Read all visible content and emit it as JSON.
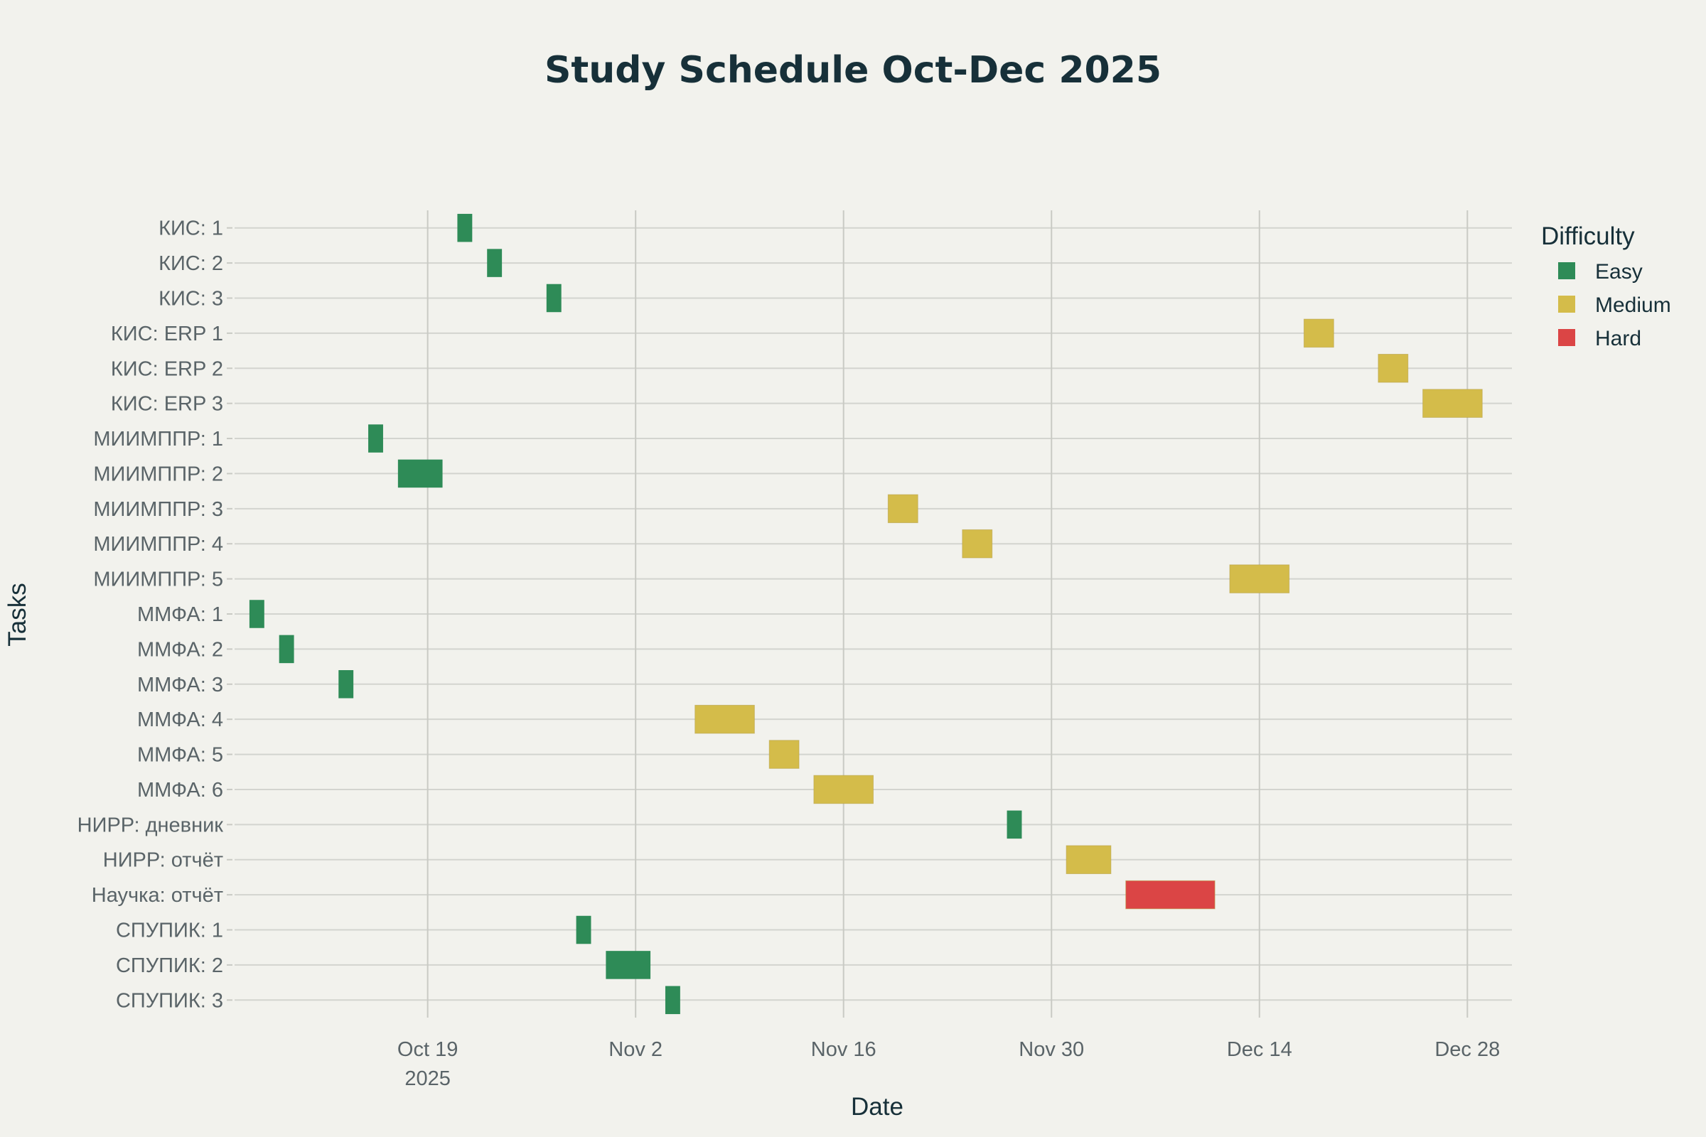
{
  "chart_data": {
    "type": "gantt",
    "title": "Study Schedule Oct-Dec 2025",
    "xlabel": "Date",
    "ylabel": "Tasks",
    "x_type": "date",
    "xlim": [
      "2025-10-06",
      "2025-12-31"
    ],
    "x_ticks": [
      {
        "date": "2025-10-19",
        "label": "Oct 19",
        "sublabel": "2025"
      },
      {
        "date": "2025-11-02",
        "label": "Nov 2",
        "sublabel": ""
      },
      {
        "date": "2025-11-16",
        "label": "Nov 16",
        "sublabel": ""
      },
      {
        "date": "2025-11-30",
        "label": "Nov 30",
        "sublabel": ""
      },
      {
        "date": "2025-12-14",
        "label": "Dec 14",
        "sublabel": ""
      },
      {
        "date": "2025-12-28",
        "label": "Dec 28",
        "sublabel": ""
      }
    ],
    "grid": true,
    "legend": {
      "title": "Difficulty",
      "position": "top-right",
      "items": [
        {
          "name": "Easy",
          "color": "#2e8b57"
        },
        {
          "name": "Medium",
          "color": "#d4bc4a"
        },
        {
          "name": "Hard",
          "color": "#db4545"
        }
      ]
    },
    "tasks": [
      {
        "task": "КИС: 1",
        "start": "2025-10-21",
        "end": "2025-10-22",
        "difficulty": "Easy"
      },
      {
        "task": "КИС: 2",
        "start": "2025-10-23",
        "end": "2025-10-24",
        "difficulty": "Easy"
      },
      {
        "task": "КИС: 3",
        "start": "2025-10-27",
        "end": "2025-10-28",
        "difficulty": "Easy"
      },
      {
        "task": "КИС: ERP 1",
        "start": "2025-12-17",
        "end": "2025-12-19",
        "difficulty": "Medium"
      },
      {
        "task": "КИС: ERP 2",
        "start": "2025-12-22",
        "end": "2025-12-24",
        "difficulty": "Medium"
      },
      {
        "task": "КИС: ERP 3",
        "start": "2025-12-25",
        "end": "2025-12-29",
        "difficulty": "Medium"
      },
      {
        "task": "МИИМППР: 1",
        "start": "2025-10-15",
        "end": "2025-10-16",
        "difficulty": "Easy"
      },
      {
        "task": "МИИМППР: 2",
        "start": "2025-10-17",
        "end": "2025-10-20",
        "difficulty": "Easy"
      },
      {
        "task": "МИИМППР: 3",
        "start": "2025-11-19",
        "end": "2025-11-21",
        "difficulty": "Medium"
      },
      {
        "task": "МИИМППР: 4",
        "start": "2025-11-24",
        "end": "2025-11-26",
        "difficulty": "Medium"
      },
      {
        "task": "МИИМППР: 5",
        "start": "2025-12-12",
        "end": "2025-12-16",
        "difficulty": "Medium"
      },
      {
        "task": "ММФА: 1",
        "start": "2025-10-07",
        "end": "2025-10-08",
        "difficulty": "Easy"
      },
      {
        "task": "ММФА: 2",
        "start": "2025-10-09",
        "end": "2025-10-10",
        "difficulty": "Easy"
      },
      {
        "task": "ММФА: 3",
        "start": "2025-10-13",
        "end": "2025-10-14",
        "difficulty": "Easy"
      },
      {
        "task": "ММФА: 4",
        "start": "2025-11-06",
        "end": "2025-11-10",
        "difficulty": "Medium"
      },
      {
        "task": "ММФА: 5",
        "start": "2025-11-11",
        "end": "2025-11-13",
        "difficulty": "Medium"
      },
      {
        "task": "ММФА: 6",
        "start": "2025-11-14",
        "end": "2025-11-18",
        "difficulty": "Medium"
      },
      {
        "task": "НИРР: дневник",
        "start": "2025-11-27",
        "end": "2025-11-28",
        "difficulty": "Easy"
      },
      {
        "task": "НИРР: отчёт",
        "start": "2025-12-01",
        "end": "2025-12-04",
        "difficulty": "Medium"
      },
      {
        "task": "Научка: отчёт",
        "start": "2025-12-05",
        "end": "2025-12-11",
        "difficulty": "Hard"
      },
      {
        "task": "СПУПИК: 1",
        "start": "2025-10-29",
        "end": "2025-10-30",
        "difficulty": "Easy"
      },
      {
        "task": "СПУПИК: 2",
        "start": "2025-10-31",
        "end": "2025-11-03",
        "difficulty": "Easy"
      },
      {
        "task": "СПУПИК: 3",
        "start": "2025-11-04",
        "end": "2025-11-05",
        "difficulty": "Easy"
      }
    ]
  }
}
